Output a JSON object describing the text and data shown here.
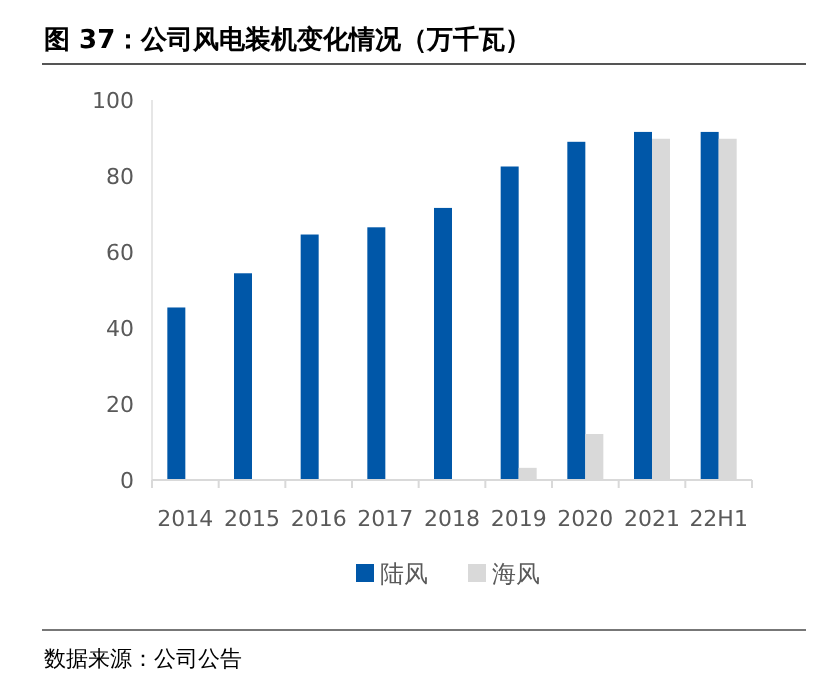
{
  "chart_data": {
    "type": "bar",
    "title": "图 37：公司风电装机变化情况（万千瓦）",
    "categories": [
      "2014",
      "2015",
      "2016",
      "2017",
      "2018",
      "2019",
      "2020",
      "2021",
      "22H1"
    ],
    "series": [
      {
        "name": "陆风",
        "color": "#0057a8",
        "values": [
          45.4,
          54.4,
          64.6,
          66.5,
          71.6,
          82.5,
          89,
          91.6,
          91.6
        ]
      },
      {
        "name": "海风",
        "color": "#d9d9d9",
        "values": [
          null,
          null,
          null,
          null,
          null,
          3.2,
          12.1,
          89.8,
          89.8
        ]
      }
    ],
    "ylim": [
      0,
      100
    ],
    "yticks": [
      0,
      20,
      40,
      60,
      80,
      100
    ],
    "legend": "bottom",
    "annotations": [
      "数据来源：公司公告"
    ]
  }
}
